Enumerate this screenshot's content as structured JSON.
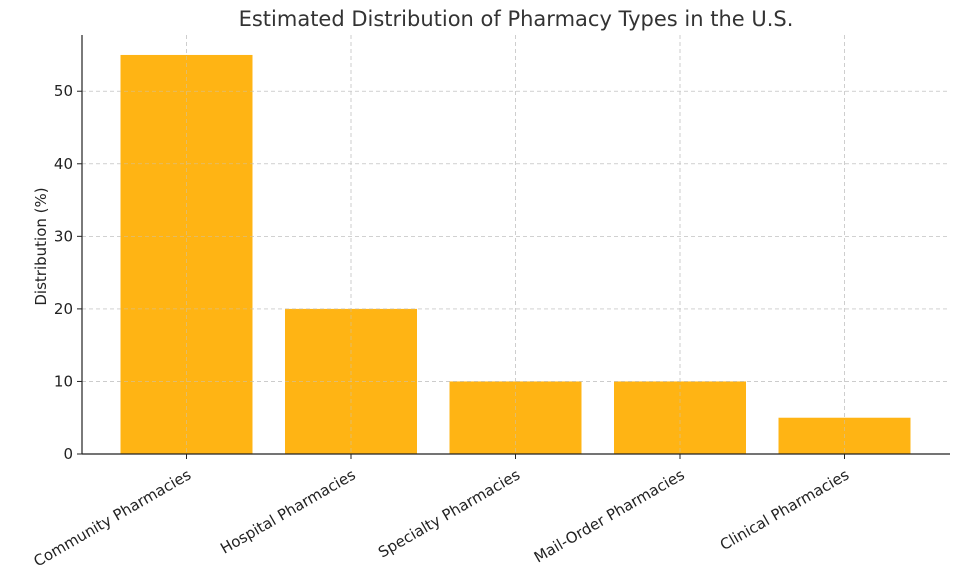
{
  "chart_data": {
    "type": "bar",
    "title": "Estimated Distribution of Pharmacy Types in the U.S.",
    "xlabel": "",
    "ylabel": "Distribution (%)",
    "categories": [
      "Community Pharmacies",
      "Hospital Pharmacies",
      "Specialty Pharmacies",
      "Mail-Order Pharmacies",
      "Clinical Pharmacies"
    ],
    "values": [
      55,
      20,
      10,
      10,
      5
    ],
    "ylim": [
      0,
      57.75
    ],
    "yticks": [
      0,
      10,
      20,
      30,
      40,
      50
    ],
    "bar_color": "#FFAE00",
    "grid": true,
    "x_tick_rotation": "30 degrees, right-aligned"
  }
}
